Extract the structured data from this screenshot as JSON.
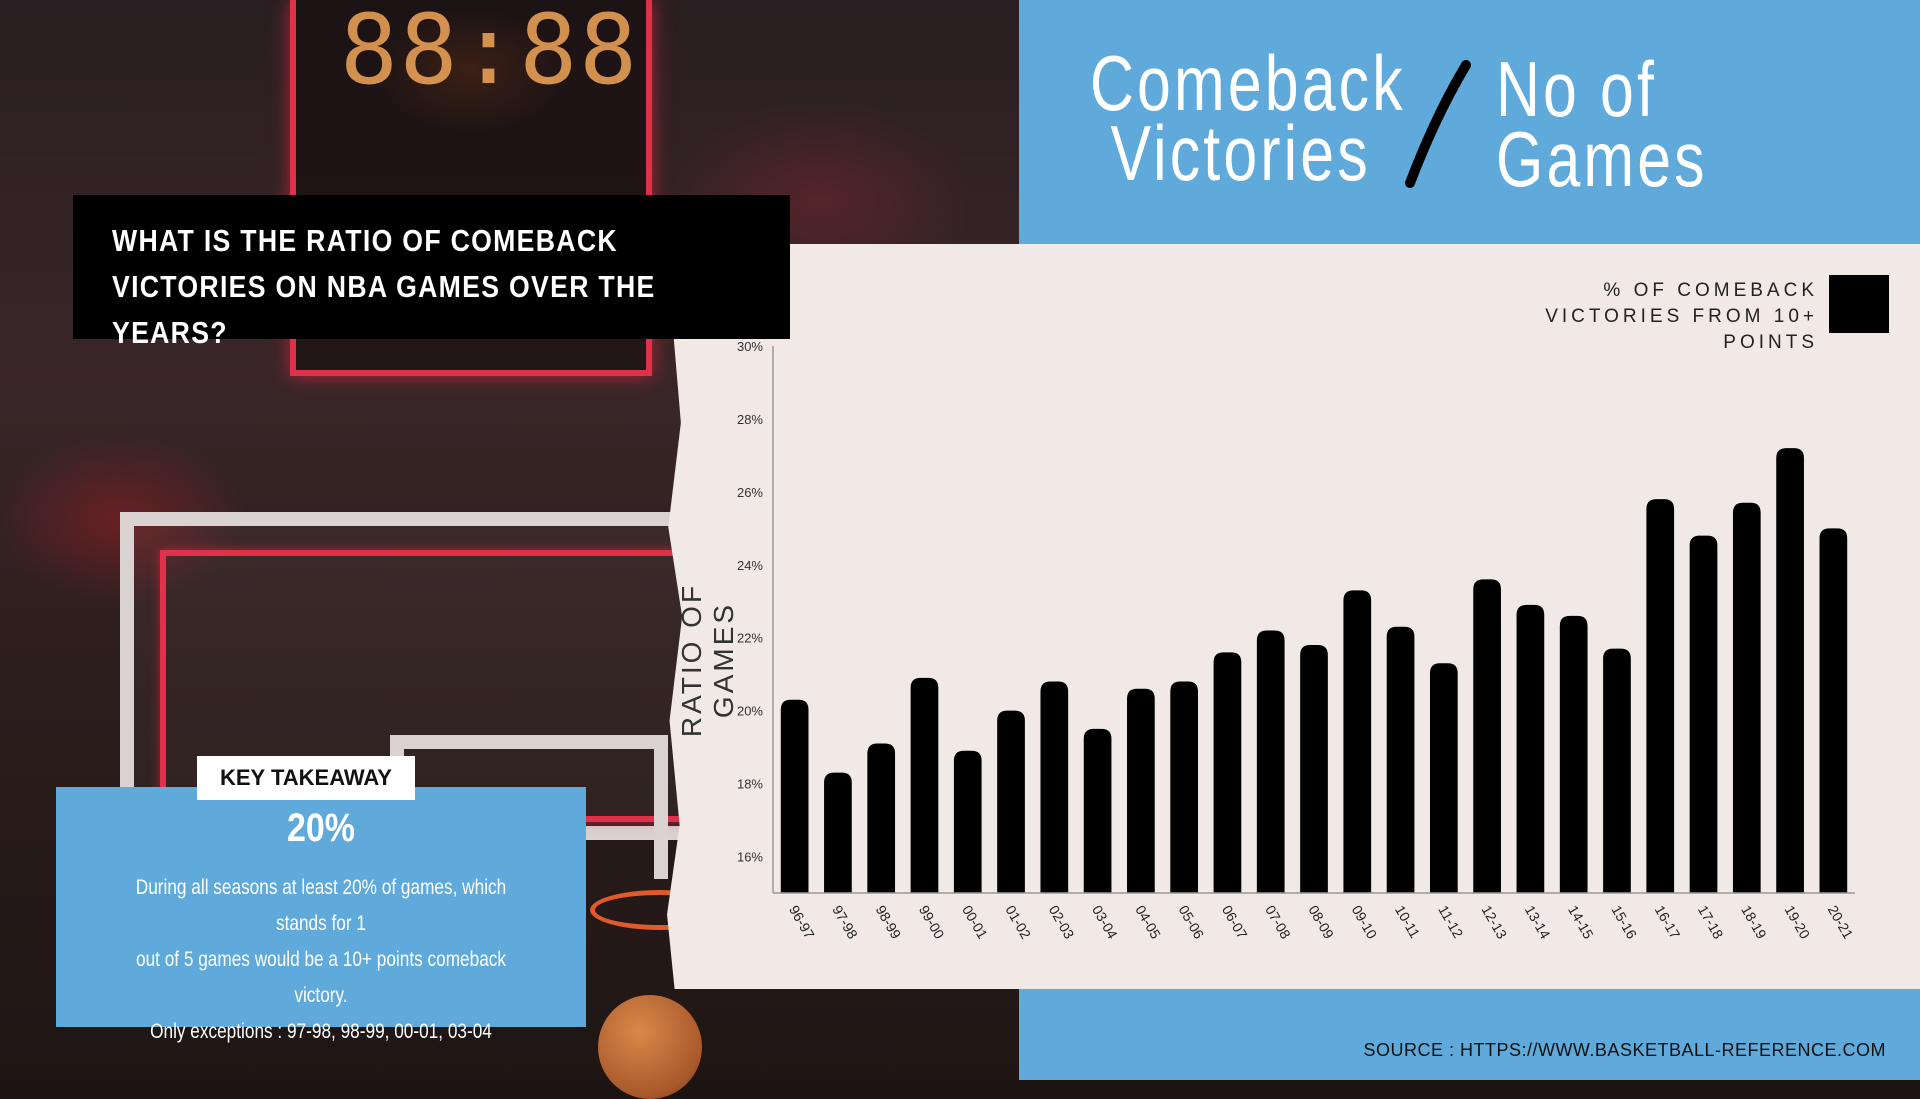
{
  "header": {
    "title_numerator_line1": "Comeback",
    "title_numerator_line2": "Victories",
    "title_denominator_line1": "No of",
    "title_denominator_line2": "Games"
  },
  "question": "WHAT IS THE RATIO OF COMEBACK VICTORIES ON NBA GAMES OVER THE YEARS?",
  "takeaway": {
    "tab_label": "KEY TAKEAWAY",
    "value": "20%",
    "line1": "During all seasons at least 20% of games, which stands for 1",
    "line2": "out of 5 games would be a 10+ points comeback victory.",
    "line3": "Only exceptions : 97-98, 98-99, 00-01, 03-04"
  },
  "source": "SOURCE : HTTPS://WWW.BASKETBALL-REFERENCE.COM",
  "colors": {
    "blue": "#5fa9db",
    "panel": "#f0e9e6",
    "bar": "#000000"
  },
  "chart_data": {
    "type": "bar",
    "ylabel": "RATIO OF GAMES",
    "ylim": [
      15,
      30
    ],
    "yticks": [
      16,
      18,
      20,
      22,
      24,
      26,
      28,
      30
    ],
    "ytick_suffix": "%",
    "legend": "% OF COMEBACK VICTORIES FROM 10+ POINTS",
    "legend_placement": "top-right",
    "grid": false,
    "categories": [
      "96-97",
      "97-98",
      "98-99",
      "99-00",
      "00-01",
      "01-02",
      "02-03",
      "03-04",
      "04-05",
      "05-06",
      "06-07",
      "07-08",
      "08-09",
      "09-10",
      "10-11",
      "11-12",
      "12-13",
      "13-14",
      "14-15",
      "15-16",
      "16-17",
      "17-18",
      "18-19",
      "19-20",
      "20-21"
    ],
    "series": [
      {
        "name": "% OF COMEBACK VICTORIES FROM 10+ POINTS",
        "values": [
          20.3,
          18.3,
          19.1,
          20.9,
          18.9,
          20.0,
          20.8,
          19.5,
          20.6,
          20.8,
          21.6,
          22.2,
          21.8,
          23.3,
          22.3,
          21.3,
          23.6,
          22.9,
          22.6,
          21.7,
          25.8,
          24.8,
          25.7,
          27.2,
          25.0
        ]
      }
    ]
  }
}
